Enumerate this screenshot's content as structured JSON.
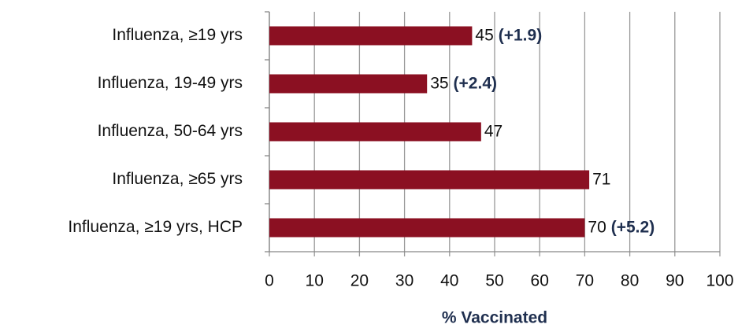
{
  "chart_data": {
    "type": "hbar",
    "categories": [
      "Influenza, ≥19 yrs",
      "Influenza, 19-49 yrs",
      "Influenza, 50-64 yrs",
      "Influenza, ≥65 yrs",
      "Influenza, ≥19 yrs, HCP"
    ],
    "values": [
      45,
      35,
      47,
      71,
      70
    ],
    "annotations": [
      "(+1.9)",
      "(+2.4)",
      null,
      null,
      "(+5.2)"
    ],
    "color": "#8b1022",
    "xlabel": "% Vaccinated",
    "xlim": [
      0,
      100
    ],
    "xticks": [
      0,
      10,
      20,
      30,
      40,
      50,
      60,
      70,
      80,
      90,
      100
    ],
    "grid": true
  }
}
